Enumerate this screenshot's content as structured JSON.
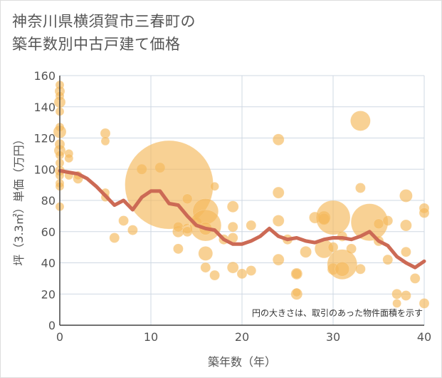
{
  "chart_data": {
    "type": "scatter",
    "title": [
      "神奈川県横須賀市三春町の",
      "築年数別中古戸建て価格"
    ],
    "xlabel": "築年数（年）",
    "ylabel": "坪（3.3㎡）単価（万円）",
    "xlim": [
      0,
      40
    ],
    "ylim": [
      0,
      160
    ],
    "xticks": [
      "0",
      "10",
      "20",
      "30",
      "40"
    ],
    "yticks": [
      "0",
      "20",
      "40",
      "60",
      "80",
      "100",
      "120",
      "140",
      "160"
    ],
    "note": "円の大きさは、取引のあった物件面積を示す",
    "colors": {
      "bubble": "#f4b95a",
      "line": "#cc6a55",
      "grid": "#cfd8e3",
      "axis": "#444444"
    },
    "points": [
      {
        "x": 0,
        "y": 154,
        "r": 6
      },
      {
        "x": 0,
        "y": 150,
        "r": 7
      },
      {
        "x": 0,
        "y": 147,
        "r": 6
      },
      {
        "x": 0,
        "y": 143,
        "r": 8
      },
      {
        "x": 0,
        "y": 137,
        "r": 6
      },
      {
        "x": 0,
        "y": 127,
        "r": 6
      },
      {
        "x": 0,
        "y": 124,
        "r": 9
      },
      {
        "x": 0,
        "y": 116,
        "r": 7
      },
      {
        "x": 0,
        "y": 112,
        "r": 8
      },
      {
        "x": 0,
        "y": 109,
        "r": 6
      },
      {
        "x": 0,
        "y": 104,
        "r": 6
      },
      {
        "x": 0,
        "y": 99,
        "r": 7
      },
      {
        "x": 0,
        "y": 96,
        "r": 6
      },
      {
        "x": 0,
        "y": 91,
        "r": 6
      },
      {
        "x": 0,
        "y": 89,
        "r": 6
      },
      {
        "x": 0,
        "y": 76,
        "r": 6
      },
      {
        "x": 1,
        "y": 110,
        "r": 6
      },
      {
        "x": 1,
        "y": 107,
        "r": 6
      },
      {
        "x": 1,
        "y": 96,
        "r": 6
      },
      {
        "x": 2,
        "y": 94,
        "r": 7
      },
      {
        "x": 2,
        "y": 96,
        "r": 6
      },
      {
        "x": 5,
        "y": 123,
        "r": 7
      },
      {
        "x": 5,
        "y": 118,
        "r": 6
      },
      {
        "x": 5,
        "y": 85,
        "r": 6
      },
      {
        "x": 5,
        "y": 82,
        "r": 6
      },
      {
        "x": 6,
        "y": 56,
        "r": 7
      },
      {
        "x": 7,
        "y": 67,
        "r": 7
      },
      {
        "x": 8,
        "y": 61,
        "r": 7
      },
      {
        "x": 9,
        "y": 100,
        "r": 7
      },
      {
        "x": 11,
        "y": 101,
        "r": 7
      },
      {
        "x": 12,
        "y": 90,
        "r": 62
      },
      {
        "x": 13,
        "y": 60,
        "r": 8
      },
      {
        "x": 13,
        "y": 63,
        "r": 7
      },
      {
        "x": 13,
        "y": 49,
        "r": 7
      },
      {
        "x": 14,
        "y": 81,
        "r": 7
      },
      {
        "x": 14,
        "y": 62,
        "r": 7
      },
      {
        "x": 14,
        "y": 60,
        "r": 7
      },
      {
        "x": 15,
        "y": 66,
        "r": 7
      },
      {
        "x": 16,
        "y": 73,
        "r": 18
      },
      {
        "x": 16,
        "y": 64,
        "r": 22
      },
      {
        "x": 16,
        "y": 62,
        "r": 9
      },
      {
        "x": 16,
        "y": 46,
        "r": 10
      },
      {
        "x": 16,
        "y": 37,
        "r": 7
      },
      {
        "x": 17,
        "y": 89,
        "r": 6
      },
      {
        "x": 17,
        "y": 32,
        "r": 7
      },
      {
        "x": 18,
        "y": 55,
        "r": 7
      },
      {
        "x": 19,
        "y": 76,
        "r": 8
      },
      {
        "x": 19,
        "y": 63,
        "r": 7
      },
      {
        "x": 19,
        "y": 56,
        "r": 7
      },
      {
        "x": 19,
        "y": 37,
        "r": 8
      },
      {
        "x": 20,
        "y": 33,
        "r": 7
      },
      {
        "x": 21,
        "y": 64,
        "r": 7
      },
      {
        "x": 21,
        "y": 35,
        "r": 7
      },
      {
        "x": 24,
        "y": 119,
        "r": 8
      },
      {
        "x": 24,
        "y": 85,
        "r": 8
      },
      {
        "x": 24,
        "y": 67,
        "r": 8
      },
      {
        "x": 24,
        "y": 42,
        "r": 8
      },
      {
        "x": 25,
        "y": 55,
        "r": 7
      },
      {
        "x": 26,
        "y": 33,
        "r": 8
      },
      {
        "x": 26,
        "y": 33,
        "r": 7
      },
      {
        "x": 26,
        "y": 20,
        "r": 8
      },
      {
        "x": 26,
        "y": 21,
        "r": 6
      },
      {
        "x": 27,
        "y": 47,
        "r": 8
      },
      {
        "x": 28,
        "y": 69,
        "r": 8
      },
      {
        "x": 29,
        "y": 69,
        "r": 9
      },
      {
        "x": 29,
        "y": 68,
        "r": 8
      },
      {
        "x": 29,
        "y": 49,
        "r": 13
      },
      {
        "x": 30,
        "y": 69,
        "r": 24
      },
      {
        "x": 30,
        "y": 50,
        "r": 7
      },
      {
        "x": 30,
        "y": 36,
        "r": 8
      },
      {
        "x": 31,
        "y": 39,
        "r": 21
      },
      {
        "x": 31,
        "y": 36,
        "r": 10
      },
      {
        "x": 31,
        "y": 57,
        "r": 7
      },
      {
        "x": 32,
        "y": 49,
        "r": 7
      },
      {
        "x": 33,
        "y": 131,
        "r": 14
      },
      {
        "x": 33,
        "y": 88,
        "r": 7
      },
      {
        "x": 33,
        "y": 36,
        "r": 7
      },
      {
        "x": 34,
        "y": 66,
        "r": 26
      },
      {
        "x": 35,
        "y": 65,
        "r": 7
      },
      {
        "x": 35,
        "y": 54,
        "r": 7
      },
      {
        "x": 36,
        "y": 67,
        "r": 7
      },
      {
        "x": 36,
        "y": 42,
        "r": 7
      },
      {
        "x": 37,
        "y": 20,
        "r": 7
      },
      {
        "x": 37,
        "y": 14,
        "r": 6
      },
      {
        "x": 38,
        "y": 83,
        "r": 9
      },
      {
        "x": 38,
        "y": 64,
        "r": 8
      },
      {
        "x": 38,
        "y": 47,
        "r": 7
      },
      {
        "x": 38,
        "y": 19,
        "r": 7
      },
      {
        "x": 39,
        "y": 30,
        "r": 7
      },
      {
        "x": 40,
        "y": 75,
        "r": 7
      },
      {
        "x": 40,
        "y": 72,
        "r": 7
      },
      {
        "x": 40,
        "y": 14,
        "r": 7
      }
    ],
    "trend": {
      "x": [
        0,
        1,
        2,
        3,
        4,
        5,
        6,
        7,
        8,
        9,
        10,
        11,
        12,
        13,
        14,
        15,
        16,
        17,
        18,
        19,
        20,
        21,
        22,
        23,
        24,
        25,
        26,
        27,
        28,
        29,
        30,
        31,
        32,
        33,
        34,
        35,
        36,
        37,
        38,
        39,
        40
      ],
      "y": [
        99,
        98,
        97,
        94,
        89,
        83,
        77,
        80,
        74,
        82,
        86,
        86,
        78,
        77,
        70,
        64,
        62,
        61,
        55,
        52,
        52,
        54,
        57,
        62,
        57,
        55,
        56,
        54,
        53,
        55,
        56,
        56,
        55,
        57,
        60,
        54,
        51,
        44,
        40,
        37,
        41
      ]
    }
  }
}
